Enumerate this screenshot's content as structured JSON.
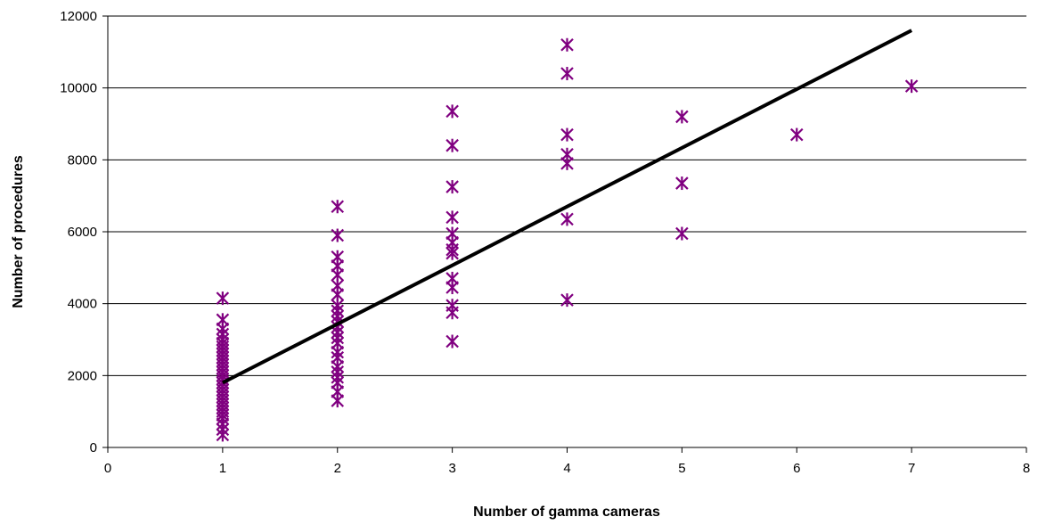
{
  "chart_data": {
    "type": "scatter",
    "xlabel": "Number of gamma cameras",
    "ylabel": "Number of procedures",
    "xlim": [
      0,
      8
    ],
    "ylim": [
      0,
      12000
    ],
    "x_ticks": [
      "0",
      "1",
      "2",
      "3",
      "4",
      "5",
      "6",
      "7",
      "8"
    ],
    "y_ticks": [
      "0",
      "2000",
      "4000",
      "6000",
      "8000",
      "10000",
      "12000"
    ],
    "grid": "horizontal",
    "marker": "asterisk",
    "colors": {
      "points": "#800080",
      "trend": "#000000",
      "grid": "#000000"
    },
    "points": [
      {
        "x": 1,
        "y": 4150
      },
      {
        "x": 1,
        "y": 3550
      },
      {
        "x": 1,
        "y": 3300
      },
      {
        "x": 1,
        "y": 3150
      },
      {
        "x": 1,
        "y": 3000
      },
      {
        "x": 1,
        "y": 2900
      },
      {
        "x": 1,
        "y": 2800
      },
      {
        "x": 1,
        "y": 2700
      },
      {
        "x": 1,
        "y": 2600
      },
      {
        "x": 1,
        "y": 2500
      },
      {
        "x": 1,
        "y": 2400
      },
      {
        "x": 1,
        "y": 2300
      },
      {
        "x": 1,
        "y": 2200
      },
      {
        "x": 1,
        "y": 2100
      },
      {
        "x": 1,
        "y": 2000
      },
      {
        "x": 1,
        "y": 1900
      },
      {
        "x": 1,
        "y": 1800
      },
      {
        "x": 1,
        "y": 1700
      },
      {
        "x": 1,
        "y": 1600
      },
      {
        "x": 1,
        "y": 1500
      },
      {
        "x": 1,
        "y": 1400
      },
      {
        "x": 1,
        "y": 1300
      },
      {
        "x": 1,
        "y": 1200
      },
      {
        "x": 1,
        "y": 1100
      },
      {
        "x": 1,
        "y": 1000
      },
      {
        "x": 1,
        "y": 900
      },
      {
        "x": 1,
        "y": 800
      },
      {
        "x": 1,
        "y": 650
      },
      {
        "x": 1,
        "y": 500
      },
      {
        "x": 1,
        "y": 350
      },
      {
        "x": 2,
        "y": 6700
      },
      {
        "x": 2,
        "y": 5900
      },
      {
        "x": 2,
        "y": 5300
      },
      {
        "x": 2,
        "y": 5050
      },
      {
        "x": 2,
        "y": 4800
      },
      {
        "x": 2,
        "y": 4500
      },
      {
        "x": 2,
        "y": 4250
      },
      {
        "x": 2,
        "y": 3950
      },
      {
        "x": 2,
        "y": 3800
      },
      {
        "x": 2,
        "y": 3650
      },
      {
        "x": 2,
        "y": 3500
      },
      {
        "x": 2,
        "y": 3350
      },
      {
        "x": 2,
        "y": 3200
      },
      {
        "x": 2,
        "y": 3050
      },
      {
        "x": 2,
        "y": 2900
      },
      {
        "x": 2,
        "y": 2650
      },
      {
        "x": 2,
        "y": 2500
      },
      {
        "x": 2,
        "y": 2250
      },
      {
        "x": 2,
        "y": 2100
      },
      {
        "x": 2,
        "y": 1950
      },
      {
        "x": 2,
        "y": 1800
      },
      {
        "x": 2,
        "y": 1550
      },
      {
        "x": 2,
        "y": 1300
      },
      {
        "x": 3,
        "y": 9350
      },
      {
        "x": 3,
        "y": 8400
      },
      {
        "x": 3,
        "y": 7250
      },
      {
        "x": 3,
        "y": 6400
      },
      {
        "x": 3,
        "y": 5950
      },
      {
        "x": 3,
        "y": 5700
      },
      {
        "x": 3,
        "y": 5500
      },
      {
        "x": 3,
        "y": 5400
      },
      {
        "x": 3,
        "y": 4700
      },
      {
        "x": 3,
        "y": 4450
      },
      {
        "x": 3,
        "y": 3950
      },
      {
        "x": 3,
        "y": 3750
      },
      {
        "x": 3,
        "y": 2950
      },
      {
        "x": 4,
        "y": 11200
      },
      {
        "x": 4,
        "y": 10400
      },
      {
        "x": 4,
        "y": 8700
      },
      {
        "x": 4,
        "y": 8150
      },
      {
        "x": 4,
        "y": 7900
      },
      {
        "x": 4,
        "y": 6350
      },
      {
        "x": 4,
        "y": 4100
      },
      {
        "x": 5,
        "y": 9200
      },
      {
        "x": 5,
        "y": 7350
      },
      {
        "x": 5,
        "y": 5950
      },
      {
        "x": 6,
        "y": 8700
      },
      {
        "x": 7,
        "y": 10050
      }
    ],
    "trendline": {
      "x": [
        1,
        7
      ],
      "y": [
        1800,
        11600
      ]
    }
  }
}
